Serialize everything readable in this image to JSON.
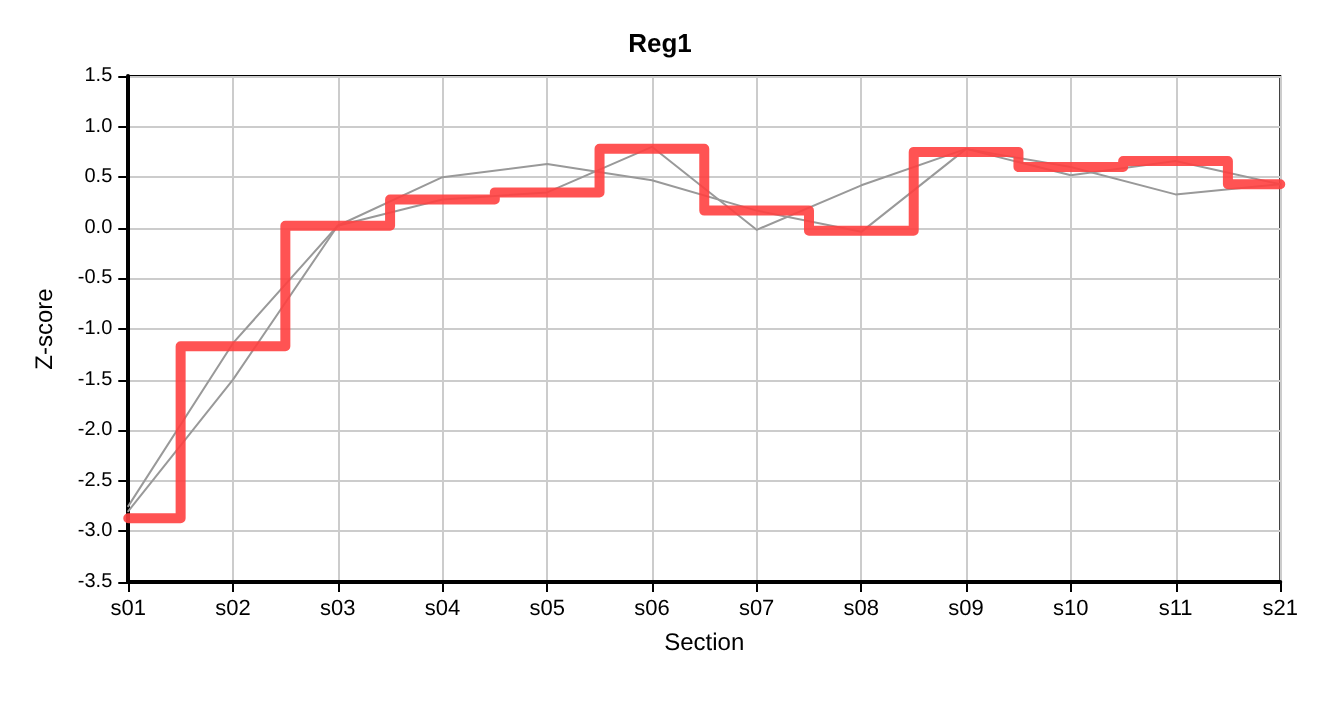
{
  "chart_data": {
    "type": "line",
    "title": "Reg1",
    "xlabel": "Section",
    "ylabel": "Z-score",
    "categories": [
      "s01",
      "s02",
      "s03",
      "s04",
      "s05",
      "s06",
      "s07",
      "s08",
      "s09",
      "s10",
      "s11",
      "s21"
    ],
    "series": [
      {
        "color": "#999999",
        "values": [
          -2.75,
          -1.14,
          0.02,
          0.5,
          0.63,
          0.47,
          0.17,
          -0.04,
          0.78,
          0.6,
          0.33,
          0.43
        ]
      },
      {
        "color": "#999999",
        "values": [
          -2.8,
          -1.5,
          0.02,
          0.28,
          0.35,
          0.8,
          -0.02,
          0.42,
          0.78,
          0.52,
          0.66,
          0.43
        ]
      },
      {
        "type": "step",
        "color": "#ff4040",
        "values": [
          -2.87,
          -1.17,
          0.02,
          0.28,
          0.35,
          0.78,
          0.17,
          -0.03,
          0.75,
          0.6,
          0.66,
          0.43
        ]
      }
    ],
    "ylim": [
      -3.5,
      1.5
    ],
    "yticks": [
      -3.5,
      {
        "value": -3,
        "label": "-3.0"
      },
      -2.5,
      {
        "value": -2,
        "label": "-2.0"
      },
      -1.5,
      {
        "value": -1,
        "label": "-1.0"
      },
      -0.5,
      {
        "value": 0,
        "label": "0.0"
      },
      0.5,
      {
        "value": 1,
        "label": "1.0"
      },
      1.5
    ],
    "grid": true,
    "marker": "none",
    "line_style": "solid"
  }
}
